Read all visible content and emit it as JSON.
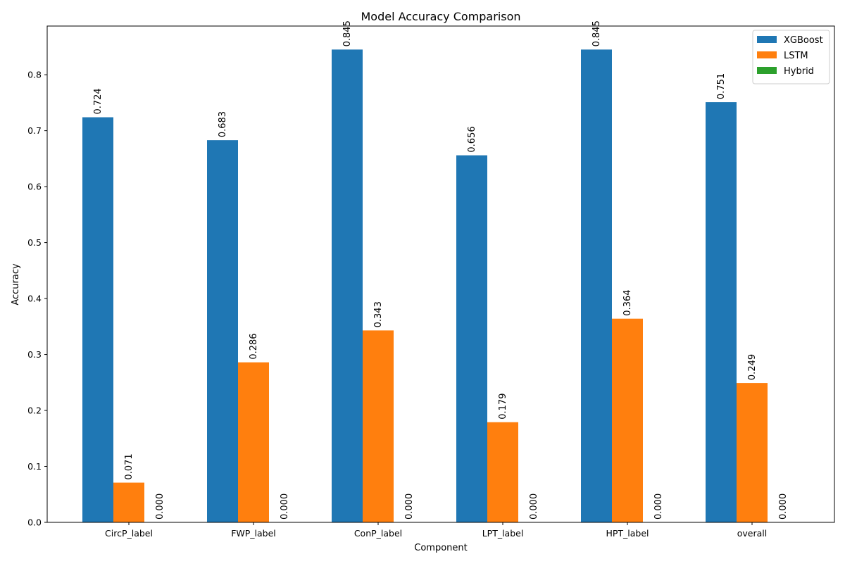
{
  "chart_data": {
    "type": "bar",
    "title": "Model Accuracy Comparison",
    "xlabel": "Component",
    "ylabel": "Accuracy",
    "categories": [
      "CircP_label",
      "FWP_label",
      "ConP_label",
      "LPT_label",
      "HPT_label",
      "overall"
    ],
    "series": [
      {
        "name": "XGBoost",
        "color": "#1f77b4",
        "values": [
          0.724,
          0.683,
          0.845,
          0.656,
          0.845,
          0.751
        ]
      },
      {
        "name": "LSTM",
        "color": "#ff7f0e",
        "values": [
          0.071,
          0.286,
          0.343,
          0.179,
          0.364,
          0.249
        ]
      },
      {
        "name": "Hybrid",
        "color": "#2ca02c",
        "values": [
          0.0,
          0.0,
          0.0,
          0.0,
          0.0,
          0.0
        ]
      }
    ],
    "value_labels": {
      "XGBoost": [
        "0.724",
        "0.683",
        "0.845",
        "0.656",
        "0.845",
        "0.751"
      ],
      "LSTM": [
        "0.071",
        "0.286",
        "0.343",
        "0.179",
        "0.364",
        "0.249"
      ],
      "Hybrid": [
        "0.000",
        "0.000",
        "0.000",
        "0.000",
        "0.000",
        "0.000"
      ]
    },
    "y_ticks": [
      "0.0",
      "0.1",
      "0.2",
      "0.3",
      "0.4",
      "0.5",
      "0.6",
      "0.7",
      "0.8"
    ],
    "ylim": [
      0,
      0.887
    ],
    "grid": false,
    "legend_position": "top-right"
  }
}
